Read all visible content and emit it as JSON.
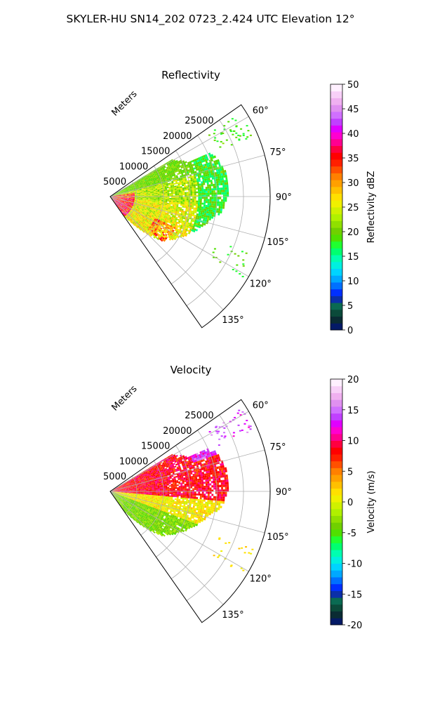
{
  "suptitle": "SKYLER-HU  SN14_202  0723_2.424 UTC Elevation 12°",
  "chart_data": [
    {
      "type": "polar-sector",
      "title": "Reflectivity",
      "range_label": "Meters",
      "theta_range_deg": [
        55,
        145
      ],
      "theta_ticks": [
        60,
        75,
        90,
        105,
        120,
        135
      ],
      "theta_tick_labels": [
        "60°",
        "75°",
        "90°",
        "105°",
        "120°",
        "135°"
      ],
      "r_max": 30000,
      "r_ticks": [
        5000,
        10000,
        15000,
        20000,
        25000
      ],
      "r_tick_labels": [
        "5000",
        "10000",
        "15000",
        "20000",
        "25000"
      ],
      "grid": true,
      "colorbar": {
        "label": "Reflectivity dBZ",
        "vmin": 0,
        "vmax": 50,
        "ticks": [
          0,
          5,
          10,
          15,
          20,
          25,
          30,
          35,
          40,
          45,
          50
        ],
        "tick_labels": [
          "0",
          "5",
          "10",
          "15",
          "20",
          "25",
          "30",
          "35",
          "40",
          "45",
          "50"
        ],
        "colors": [
          "#041a66",
          "#0a2b33",
          "#0b4a3a",
          "#0a6a52",
          "#0b2fa8",
          "#0030ff",
          "#0070ff",
          "#00a8ff",
          "#00d4ff",
          "#00f0e0",
          "#00ffb0",
          "#00ff70",
          "#20ff30",
          "#50e000",
          "#70d000",
          "#90e000",
          "#b0f000",
          "#d0f000",
          "#f0f000",
          "#ffe000",
          "#ffc000",
          "#ffa000",
          "#ff8000",
          "#ff5000",
          "#ff2000",
          "#ff0000",
          "#ff0040",
          "#ff0090",
          "#ff00d0",
          "#e000ff",
          "#c040ff",
          "#d070ff",
          "#e090f0",
          "#f0b0f0",
          "#f8d0f8",
          "#fff0ff"
        ]
      },
      "field_hint": "radial sector of reflectivity values, mostly 15–30 dBZ (green/yellow) with 35–40 dBZ (red) near radar along 95–135°"
    },
    {
      "type": "polar-sector",
      "title": "Velocity",
      "range_label": "Meters",
      "theta_range_deg": [
        55,
        145
      ],
      "theta_ticks": [
        60,
        75,
        90,
        105,
        120,
        135
      ],
      "theta_tick_labels": [
        "60°",
        "75°",
        "90°",
        "105°",
        "120°",
        "135°"
      ],
      "r_max": 30000,
      "r_ticks": [
        5000,
        10000,
        15000,
        20000,
        25000
      ],
      "r_tick_labels": [
        "5000",
        "10000",
        "15000",
        "20000",
        "25000"
      ],
      "grid": true,
      "colorbar": {
        "label": "Velocity (m/s)",
        "vmin": -20,
        "vmax": 20,
        "ticks": [
          -20,
          -15,
          -10,
          -5,
          0,
          5,
          10,
          15,
          20
        ],
        "tick_labels": [
          "-20",
          "-15",
          "-10",
          "-5",
          "0",
          "5",
          "10",
          "15",
          "20"
        ],
        "colors": [
          "#041a66",
          "#0a2b33",
          "#0b4a3a",
          "#0a6a52",
          "#0b2fa8",
          "#0030ff",
          "#0070ff",
          "#00a8ff",
          "#00d4ff",
          "#00f0e0",
          "#00ffb0",
          "#00ff70",
          "#20ff30",
          "#50e000",
          "#70d000",
          "#90e000",
          "#b0f000",
          "#d0f000",
          "#f0f000",
          "#ffe000",
          "#ffc000",
          "#ffa000",
          "#ff8000",
          "#ff5000",
          "#ff2000",
          "#ff0000",
          "#ff0040",
          "#ff0090",
          "#ff00d0",
          "#e000ff",
          "#c040ff",
          "#d070ff",
          "#e090f0",
          "#f0b0f0",
          "#f8d0f8",
          "#fff0ff"
        ]
      },
      "field_hint": "radial sector of velocity: 5–10 m/s (red/orange) at 60–95°, ~0 m/s (yellow) at 95–110°, -5 to -2 m/s (yellow-green) at 110–140°"
    }
  ]
}
